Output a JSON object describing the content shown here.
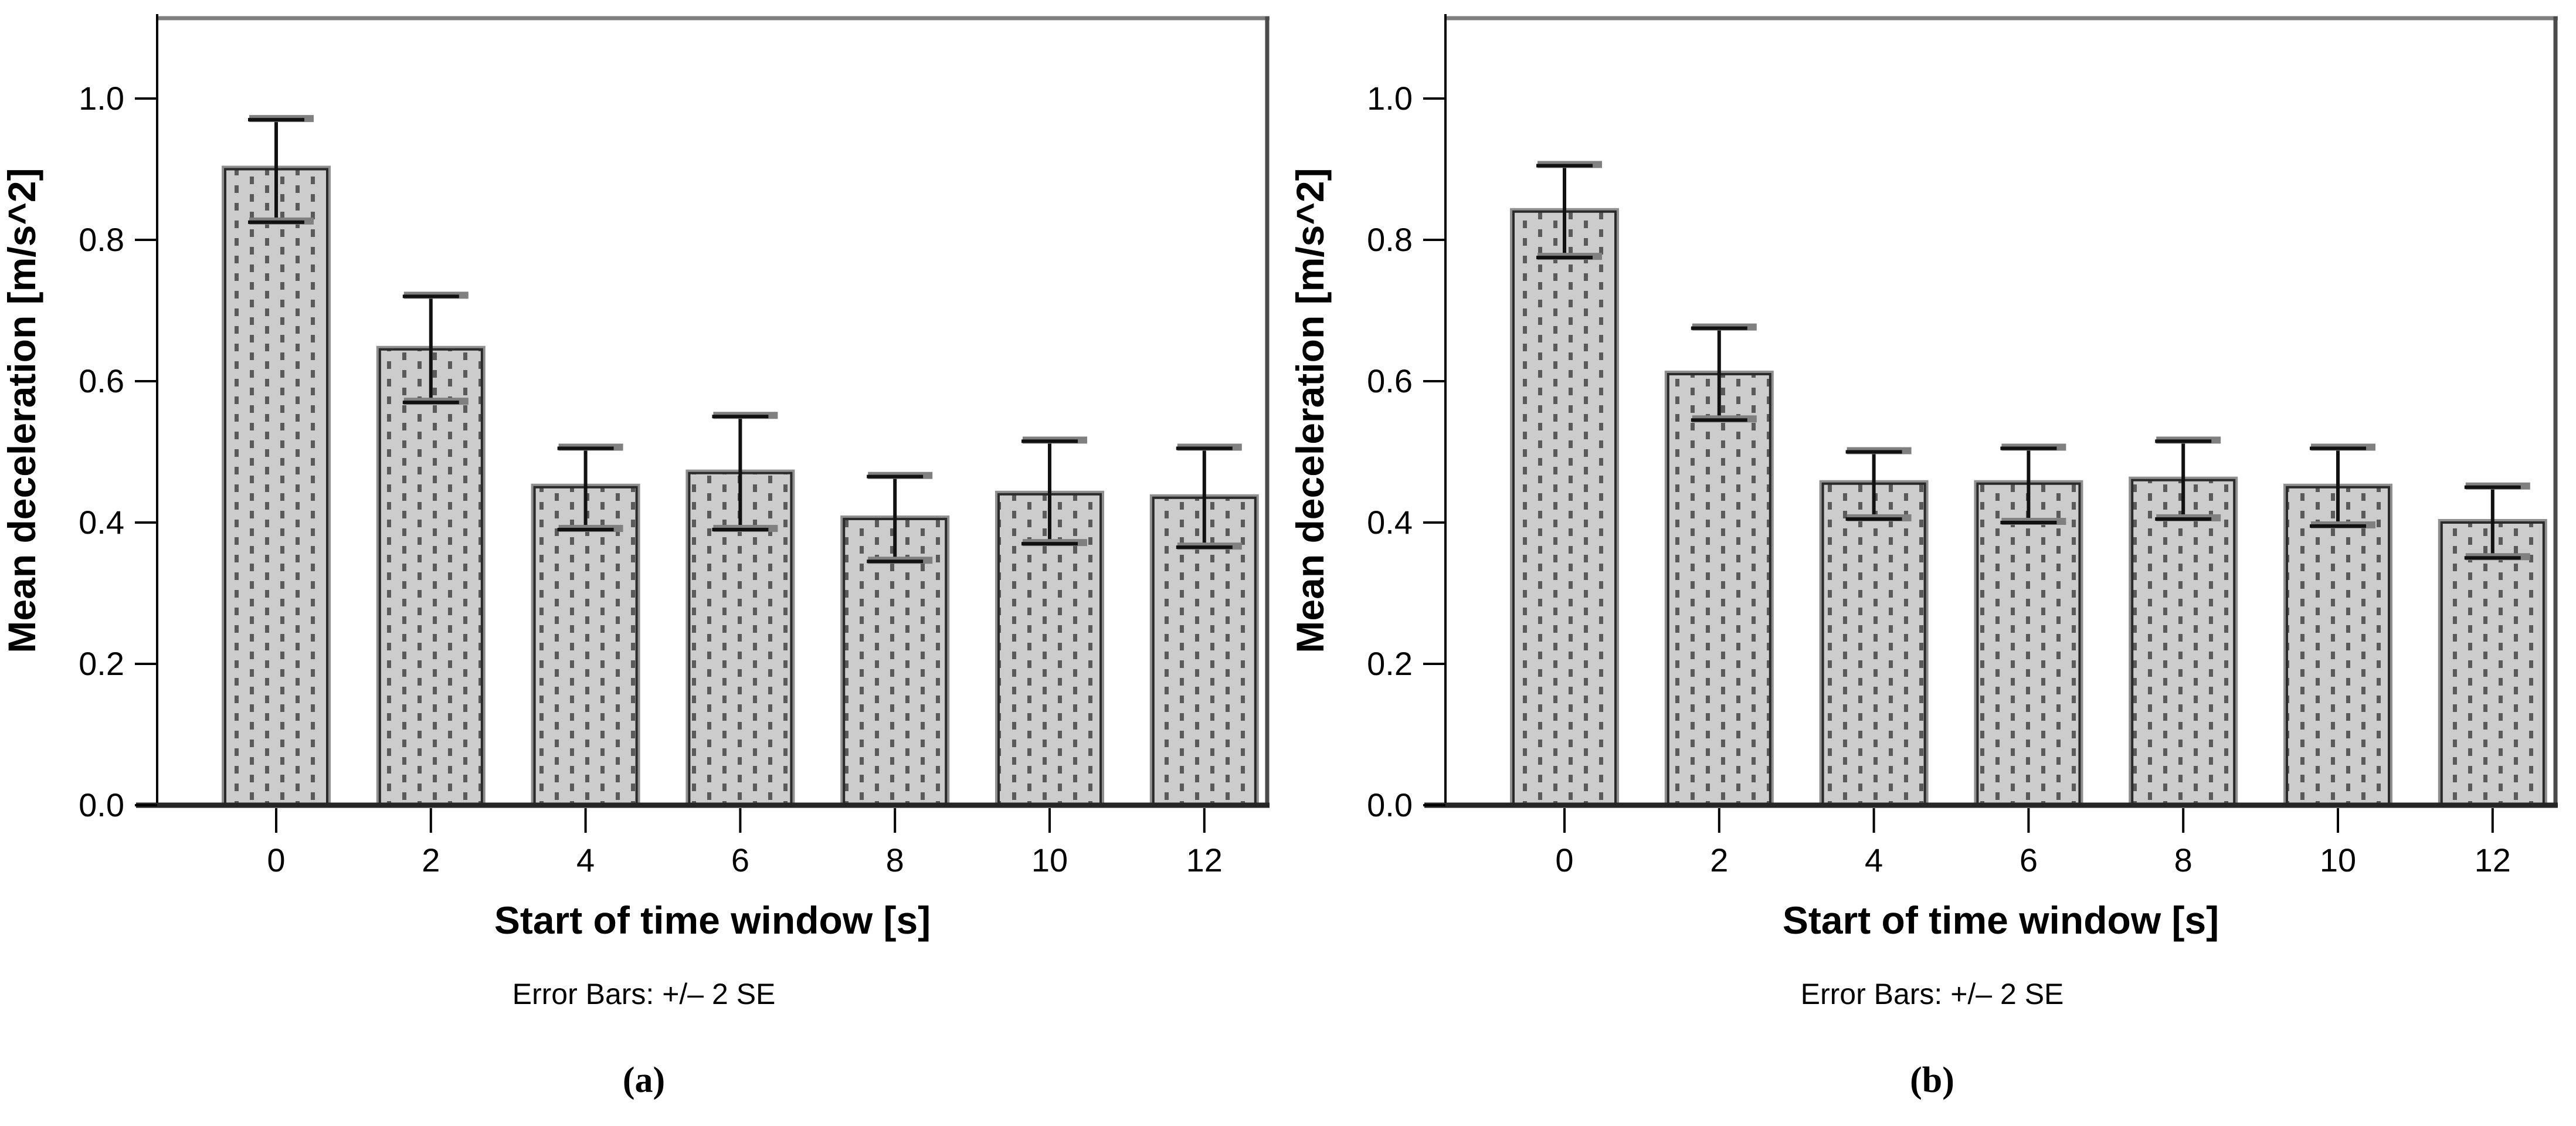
{
  "figure": {
    "description": "Two-panel bar chart figure with error bars",
    "background": "#ffffff",
    "colors": {
      "bar_fill": "#cccccc",
      "bar_hatch": "#5a5a5a",
      "bar_stroke": "#2a2a2a",
      "bar_shadow": "#909090",
      "error_line": "#111111",
      "error_cap_shadow": "#808080",
      "frame_top": "#7f7f7f",
      "frame_right": "#4b4b4b",
      "axis": "#000000",
      "x_axis": "#262626",
      "text": "#000000"
    }
  },
  "chart_data": [
    {
      "type": "bar",
      "panel": "a",
      "subcaption": "(a)",
      "footnote": "Error Bars: +/– 2 SE",
      "xlabel": "Start of time window [s]",
      "ylabel": "Mean deceleration [m/s^2]",
      "categories": [
        "0",
        "2",
        "4",
        "6",
        "8",
        "10",
        "12"
      ],
      "values": [
        0.9,
        0.645,
        0.45,
        0.47,
        0.405,
        0.44,
        0.435
      ],
      "error_low": [
        0.825,
        0.57,
        0.39,
        0.39,
        0.345,
        0.37,
        0.365
      ],
      "error_high": [
        0.97,
        0.72,
        0.505,
        0.55,
        0.465,
        0.515,
        0.505
      ],
      "yticks": [
        0.0,
        0.2,
        0.4,
        0.6,
        0.8,
        1.0
      ],
      "ytick_labels": [
        "0.0",
        "0.2",
        "0.4",
        "0.6",
        "0.8",
        "1.0"
      ],
      "ylim": [
        0,
        1.117
      ],
      "grid": false,
      "legend": "none",
      "error_bar_meaning": "+/- 2 standard errors"
    },
    {
      "type": "bar",
      "panel": "b",
      "subcaption": "(b)",
      "footnote": "Error Bars: +/– 2 SE",
      "xlabel": "Start of time window [s]",
      "ylabel": "Mean deceleration [m/s^2]",
      "categories": [
        "0",
        "2",
        "4",
        "6",
        "8",
        "10",
        "12"
      ],
      "values": [
        0.84,
        0.61,
        0.455,
        0.455,
        0.46,
        0.45,
        0.4
      ],
      "error_low": [
        0.775,
        0.545,
        0.405,
        0.4,
        0.405,
        0.395,
        0.35
      ],
      "error_high": [
        0.905,
        0.675,
        0.5,
        0.505,
        0.515,
        0.505,
        0.45
      ],
      "yticks": [
        0.0,
        0.2,
        0.4,
        0.6,
        0.8,
        1.0
      ],
      "ytick_labels": [
        "0.0",
        "0.2",
        "0.4",
        "0.6",
        "0.8",
        "1.0"
      ],
      "ylim": [
        0,
        1.117
      ],
      "grid": false,
      "legend": "none",
      "error_bar_meaning": "+/- 2 standard errors"
    }
  ]
}
